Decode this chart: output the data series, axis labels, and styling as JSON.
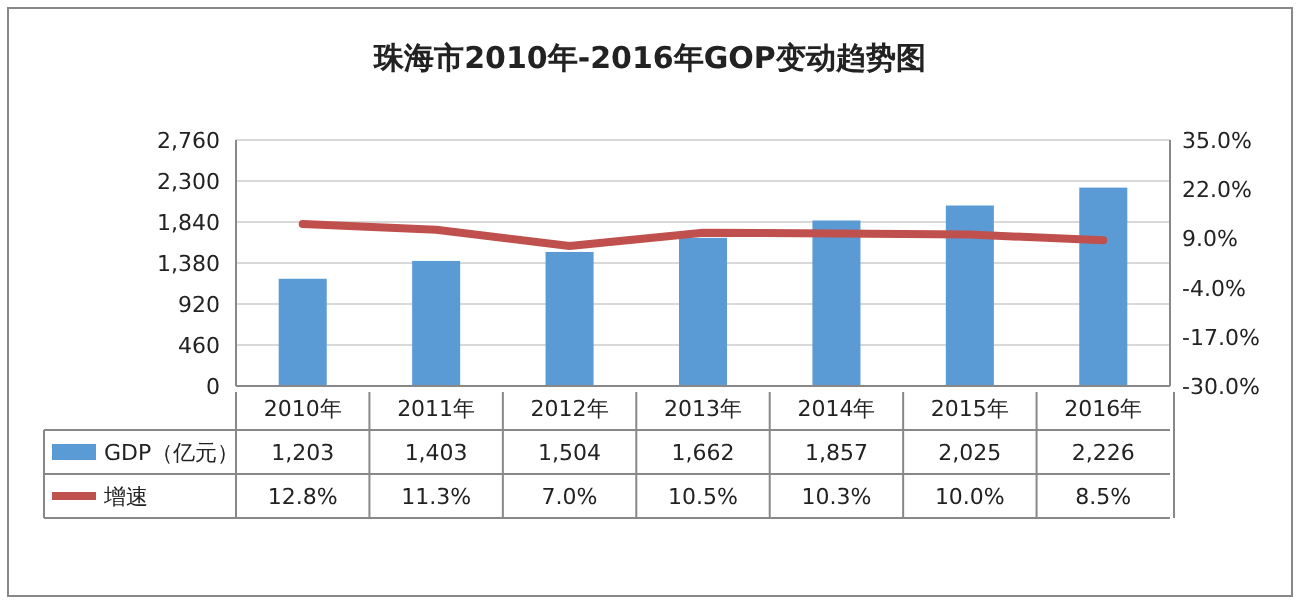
{
  "chart_data": {
    "type": "bar",
    "title": "珠海市2010年-2016年GOP变动趋势图",
    "categories": [
      "2010年",
      "2011年",
      "2012年",
      "2013年",
      "2014年",
      "2015年",
      "2016年"
    ],
    "series": [
      {
        "name": "GDP（亿元）",
        "color": "#5b9bd5",
        "values": [
          1203,
          1403,
          1504,
          1662,
          1857,
          2025,
          2226
        ],
        "value_labels": [
          "1,203",
          "1,403",
          "1,504",
          "1,662",
          "1,857",
          "2,025",
          "2,226"
        ]
      },
      {
        "name": "增速",
        "type": "line",
        "axis": "y2",
        "color": "#c0504d",
        "values": [
          12.8,
          11.3,
          7.0,
          10.5,
          10.3,
          10.0,
          8.5
        ],
        "value_labels": [
          "12.8%",
          "11.3%",
          "7.0%",
          "10.5%",
          "10.3%",
          "10.0%",
          "8.5%"
        ]
      }
    ],
    "ylim": [
      0,
      2760
    ],
    "yticks": [
      0,
      460,
      920,
      {
        "value": 1380,
        "label": "1,380"
      },
      {
        "value": 1840,
        "label": "1,840"
      },
      {
        "value": 2300,
        "label": "2,300"
      },
      {
        "value": 2760,
        "label": "2,760"
      }
    ],
    "y2lim": [
      -30,
      35
    ],
    "y2ticks": [
      {
        "value": -30,
        "label": "-30.0%"
      },
      {
        "value": -17,
        "label": "-17.0%"
      },
      {
        "value": -4,
        "label": "-4.0%"
      },
      {
        "value": 9,
        "label": "9.0%"
      },
      {
        "value": 22,
        "label": "22.0%"
      },
      {
        "value": 35,
        "label": "35.0%"
      }
    ],
    "grid": "y",
    "legend": "bottom"
  }
}
